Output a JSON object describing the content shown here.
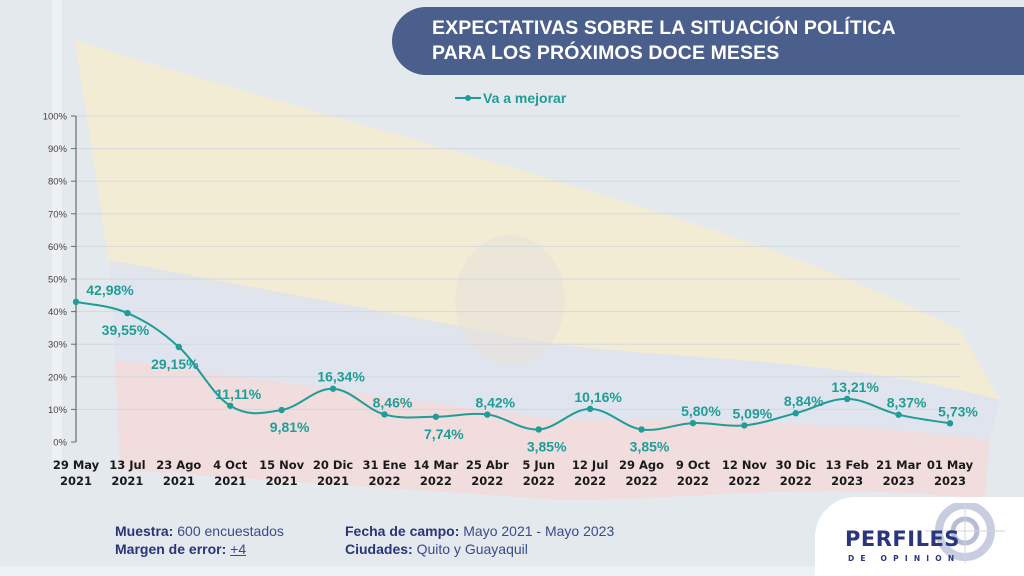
{
  "header": {
    "title_line1": "EXPECTATIVAS SOBRE LA SITUACIÓN POLÍTICA",
    "title_line2": "PARA LOS PRÓXIMOS DOCE MESES"
  },
  "colors": {
    "title_bar": "#4b5f8c",
    "series": "#1f9d96",
    "footer_text": "#2b3a78",
    "logo": "#2a3580"
  },
  "chart_data": {
    "type": "line",
    "title": "EXPECTATIVAS SOBRE LA SITUACIÓN POLÍTICA PARA LOS PRÓXIMOS DOCE MESES",
    "xlabel": "",
    "ylabel": "",
    "ylim": [
      0,
      100
    ],
    "yticks": [
      "0%",
      "10%",
      "20%",
      "30%",
      "40%",
      "50%",
      "60%",
      "70%",
      "80%",
      "90%",
      "100%"
    ],
    "grid": true,
    "legend_position": "top-center",
    "categories": [
      [
        "29 May",
        "2021"
      ],
      [
        "13 Jul",
        "2021"
      ],
      [
        "23 Ago",
        "2021"
      ],
      [
        "4 Oct",
        "2021"
      ],
      [
        "15 Nov",
        "2021"
      ],
      [
        "20 Dic",
        "2021"
      ],
      [
        "31 Ene",
        "2022"
      ],
      [
        "14 Mar",
        "2022"
      ],
      [
        "25 Abr",
        "2022"
      ],
      [
        "5 Jun",
        "2022"
      ],
      [
        "12 Jul",
        "2022"
      ],
      [
        "29 Ago",
        "2022"
      ],
      [
        "9 Oct",
        "2022"
      ],
      [
        "12 Nov",
        "2022"
      ],
      [
        "30 Dic",
        "2022"
      ],
      [
        "13 Feb",
        "2023"
      ],
      [
        "21 Mar",
        "2023"
      ],
      [
        "01 May",
        "2023"
      ]
    ],
    "series": [
      {
        "name": "Va a mejorar",
        "values": [
          42.98,
          39.55,
          29.15,
          11.11,
          9.81,
          16.34,
          8.46,
          7.74,
          8.42,
          3.85,
          10.16,
          3.85,
          5.8,
          5.09,
          8.84,
          13.21,
          8.37,
          5.73
        ],
        "labels": [
          "42,98%",
          "39,55%",
          "29,15%",
          "11,11%",
          "9,81%",
          "16,34%",
          "8,46%",
          "7,74%",
          "8,42%",
          "3,85%",
          "10,16%",
          "3,85%",
          "5,80%",
          "5,09%",
          "8,84%",
          "13,21%",
          "8,37%",
          "5,73%"
        ],
        "label_positions": [
          "above",
          "below",
          "below",
          "above",
          "below",
          "above",
          "above",
          "below",
          "above",
          "below",
          "above",
          "below",
          "above",
          "above",
          "above",
          "above",
          "above",
          "above"
        ]
      }
    ]
  },
  "footer": {
    "muestra_label": "Muestra:",
    "muestra_value": "600 encuestados",
    "margen_label": "Margen de error:",
    "margen_value": "+4",
    "fecha_label": "Fecha de campo:",
    "fecha_value": "Mayo 2021 - Mayo 2023",
    "ciudades_label": "Ciudades:",
    "ciudades_value": "Quito y Guayaquil"
  },
  "logo": {
    "name": "PERFILES",
    "subtitle": "DE OPINION"
  }
}
